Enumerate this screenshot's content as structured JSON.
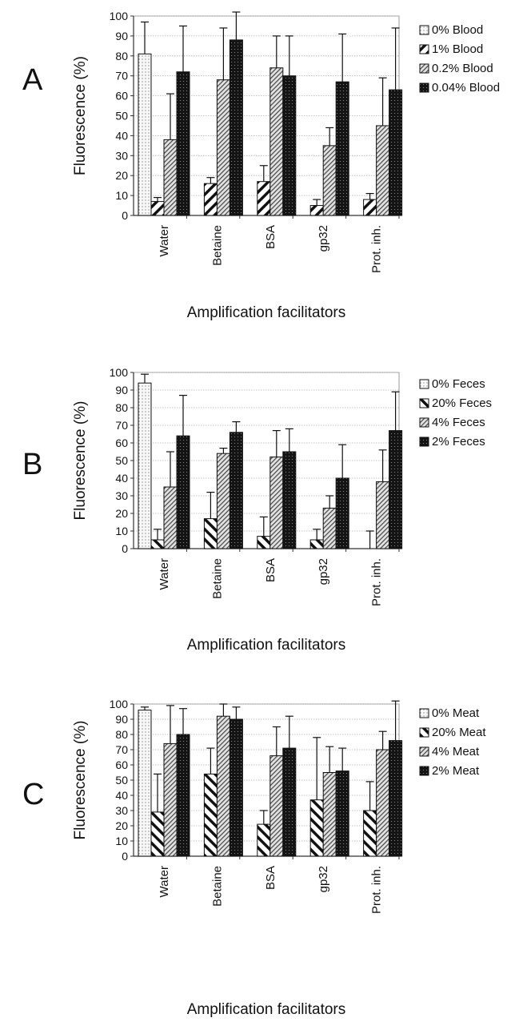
{
  "chart_data": [
    {
      "panel_label": "A",
      "type": "bar",
      "ylabel": "Fluorescence (%)",
      "xlabel": "Amplification facilitators",
      "ylim": [
        0,
        100
      ],
      "yticks": [
        "0",
        "10",
        "20",
        "30",
        "40",
        "50",
        "60",
        "70",
        "80",
        "90",
        "100"
      ],
      "grid": true,
      "legend_position": "right",
      "categories": [
        "Water",
        "Betaine",
        "BSA",
        "gp32",
        "Prot. inh."
      ],
      "series": [
        {
          "name": "0% Blood",
          "pattern": "dots",
          "values": [
            81,
            0,
            0,
            0,
            0
          ],
          "errors": [
            16,
            0,
            0,
            0,
            0
          ]
        },
        {
          "name": "1% Blood",
          "pattern": "diag",
          "values": [
            7,
            16,
            17,
            5,
            8
          ],
          "errors": [
            2,
            3,
            8,
            3,
            3
          ]
        },
        {
          "name": "0.2% Blood",
          "pattern": "hatch",
          "values": [
            38,
            68,
            74,
            35,
            45
          ],
          "errors": [
            23,
            26,
            16,
            9,
            24
          ]
        },
        {
          "name": "0.04% Blood",
          "pattern": "dark",
          "values": [
            72,
            88,
            70,
            67,
            63
          ],
          "errors": [
            23,
            15,
            20,
            24,
            31
          ]
        }
      ]
    },
    {
      "panel_label": "B",
      "type": "bar",
      "ylabel": "Fluorescence (%)",
      "xlabel": "Amplification facilitators",
      "ylim": [
        0,
        100
      ],
      "yticks": [
        "0",
        "10",
        "20",
        "30",
        "40",
        "50",
        "60",
        "70",
        "80",
        "90",
        "100"
      ],
      "grid": true,
      "legend_position": "right",
      "categories": [
        "Water",
        "Betaine",
        "BSA",
        "gp32",
        "Prot. inh."
      ],
      "series": [
        {
          "name": "0% Feces",
          "pattern": "dots",
          "values": [
            94,
            0,
            0,
            0,
            0
          ],
          "errors": [
            5,
            0,
            0,
            0,
            0
          ]
        },
        {
          "name": "20% Feces",
          "pattern": "diag-back",
          "values": [
            5,
            17,
            7,
            5,
            0
          ],
          "errors": [
            6,
            15,
            11,
            6,
            10
          ]
        },
        {
          "name": "4% Feces",
          "pattern": "hatch",
          "values": [
            35,
            54,
            52,
            23,
            38
          ],
          "errors": [
            20,
            3,
            15,
            7,
            18
          ]
        },
        {
          "name": "2% Feces",
          "pattern": "dark",
          "values": [
            64,
            66,
            55,
            40,
            67
          ],
          "errors": [
            23,
            6,
            13,
            19,
            22
          ]
        }
      ]
    },
    {
      "panel_label": "C",
      "type": "bar",
      "ylabel": "Fluorescence (%)",
      "xlabel": "Amplification facilitators",
      "ylim": [
        0,
        100
      ],
      "yticks": [
        "0",
        "10",
        "20",
        "30",
        "40",
        "50",
        "60",
        "70",
        "80",
        "90",
        "100"
      ],
      "grid": true,
      "legend_position": "right",
      "categories": [
        "Water",
        "Betaine",
        "BSA",
        "gp32",
        "Prot. inh."
      ],
      "series": [
        {
          "name": "0% Meat",
          "pattern": "dots",
          "values": [
            96,
            0,
            0,
            0,
            0
          ],
          "errors": [
            2,
            0,
            0,
            0,
            0
          ]
        },
        {
          "name": "20% Meat",
          "pattern": "diag-back",
          "values": [
            29,
            54,
            21,
            37,
            30
          ],
          "errors": [
            25,
            17,
            9,
            41,
            19
          ]
        },
        {
          "name": "4% Meat",
          "pattern": "hatch",
          "values": [
            74,
            92,
            66,
            55,
            70
          ],
          "errors": [
            25,
            8,
            19,
            17,
            12
          ]
        },
        {
          "name": "2% Meat",
          "pattern": "dark",
          "values": [
            80,
            90,
            71,
            56,
            76
          ],
          "errors": [
            17,
            8,
            21,
            15,
            26
          ]
        }
      ]
    }
  ]
}
